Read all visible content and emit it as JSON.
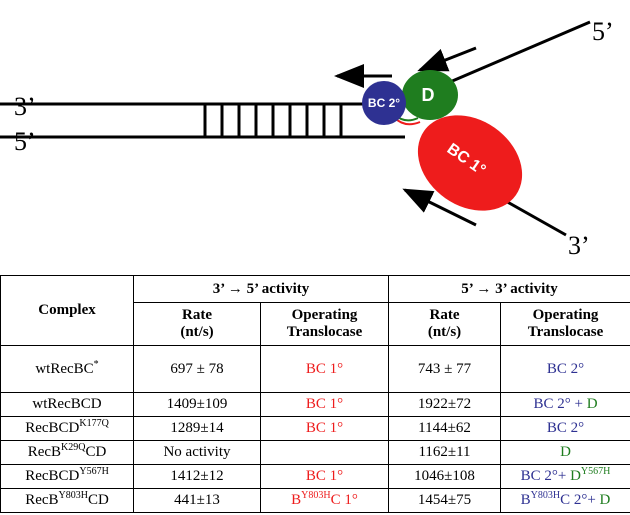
{
  "diagram": {
    "labels": {
      "left_top": "3’",
      "left_bottom": "5’",
      "right_top": "5’",
      "right_bottom": "3’"
    },
    "nodes": [
      {
        "label": "BC 2°",
        "color": "#2e3192"
      },
      {
        "label": "D",
        "color": "#1f7d1f"
      },
      {
        "label": "BC 1°",
        "color": "#ee1c1c"
      }
    ]
  },
  "table": {
    "groups": [
      "3’ → 5’ activity",
      "5’ → 3’ activity"
    ],
    "header": [
      [
        "Complex"
      ],
      [
        "Rate",
        "(nt/s)"
      ],
      [
        "Operating",
        "Translocase"
      ],
      [
        "Rate",
        "(nt/s)"
      ],
      [
        "Operating",
        "Translocase"
      ]
    ],
    "rows": [
      [
        [
          {
            "text": "wtRecBC"
          },
          {
            "text": "*",
            "sup": true
          }
        ],
        [
          {
            "text": "697 ± 78"
          }
        ],
        [
          {
            "text": "BC 1°",
            "color": "#ee1c1c"
          }
        ],
        [
          {
            "text": "743 ± 77"
          }
        ],
        [
          {
            "text": "BC 2°",
            "color": "#2e3192"
          }
        ]
      ],
      [
        [
          {
            "text": "wtRecBCD"
          }
        ],
        [
          {
            "text": "1409±109"
          }
        ],
        [
          {
            "text": "BC 1°",
            "color": "#ee1c1c"
          }
        ],
        [
          {
            "text": "1922±72"
          }
        ],
        [
          {
            "text": "BC 2° + ",
            "color": "#2e3192"
          },
          {
            "text": "D",
            "color": "#1f7d1f"
          }
        ]
      ],
      [
        [
          {
            "text": "RecBCD"
          },
          {
            "text": "K177Q",
            "sup": true
          }
        ],
        [
          {
            "text": "1289±14"
          }
        ],
        [
          {
            "text": "BC 1°",
            "color": "#ee1c1c"
          }
        ],
        [
          {
            "text": "1144±62"
          }
        ],
        [
          {
            "text": "BC 2°",
            "color": "#2e3192"
          }
        ]
      ],
      [
        [
          {
            "text": "RecB"
          },
          {
            "text": "K29Q",
            "sup": true
          },
          {
            "text": "CD"
          }
        ],
        [
          {
            "text": "No activity"
          }
        ],
        [],
        [
          {
            "text": "1162±11"
          }
        ],
        [
          {
            "text": "D",
            "color": "#1f7d1f"
          }
        ]
      ],
      [
        [
          {
            "text": "RecBCD"
          },
          {
            "text": "Y567H",
            "sup": true
          }
        ],
        [
          {
            "text": "1412±12"
          }
        ],
        [
          {
            "text": "BC 1°",
            "color": "#ee1c1c"
          }
        ],
        [
          {
            "text": "1046±108"
          }
        ],
        [
          {
            "text": "BC 2°+ ",
            "color": "#2e3192"
          },
          {
            "text": "D",
            "color": "#1f7d1f"
          },
          {
            "text": "Y567H",
            "sup": true,
            "color": "#1f7d1f"
          }
        ]
      ],
      [
        [
          {
            "text": "RecB"
          },
          {
            "text": "Y803H",
            "sup": true
          },
          {
            "text": "CD"
          }
        ],
        [
          {
            "text": "441±13"
          }
        ],
        [
          {
            "text": "B",
            "color": "#ee1c1c"
          },
          {
            "text": "Y803H",
            "sup": true,
            "color": "#ee1c1c"
          },
          {
            "text": "C 1°",
            "color": "#ee1c1c"
          }
        ],
        [
          {
            "text": "1454±75"
          }
        ],
        [
          {
            "text": "B",
            "color": "#2e3192"
          },
          {
            "text": "Y803H",
            "sup": true,
            "color": "#2e3192"
          },
          {
            "text": "C 2°+ ",
            "color": "#2e3192"
          },
          {
            "text": "D",
            "color": "#1f7d1f"
          }
        ]
      ]
    ]
  }
}
